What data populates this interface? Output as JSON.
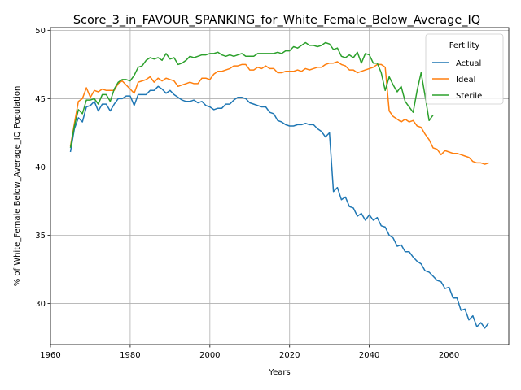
{
  "chart_data": {
    "type": "line",
    "title": "Score_3_in_FAVOUR_SPANKING_for_White_Female_Below_Average_IQ",
    "xlabel": "Years",
    "ylabel": "% of White_Female Below_Average_IQ Population",
    "xlim": [
      1960,
      2075
    ],
    "ylim": [
      27,
      50.2
    ],
    "xticks": [
      1960,
      1980,
      2000,
      2020,
      2040,
      2060
    ],
    "yticks": [
      30,
      35,
      40,
      45,
      50
    ],
    "grid": true,
    "legend": {
      "title": "Fertility",
      "placement": "top-right"
    },
    "series": [
      {
        "name": "Actual",
        "color": "#1f77b4",
        "x": [
          1965,
          1966,
          1967,
          1968,
          1969,
          1970,
          1971,
          1972,
          1973,
          1974,
          1975,
          1976,
          1977,
          1978,
          1979,
          1980,
          1981,
          1982,
          1983,
          1984,
          1985,
          1986,
          1987,
          1988,
          1989,
          1990,
          1991,
          1992,
          1993,
          1994,
          1995,
          1996,
          1997,
          1998,
          1999,
          2000,
          2001,
          2002,
          2003,
          2004,
          2005,
          2006,
          2007,
          2008,
          2009,
          2010,
          2011,
          2012,
          2013,
          2014,
          2015,
          2016,
          2017,
          2018,
          2019,
          2020,
          2021,
          2022,
          2023,
          2024,
          2025,
          2026,
          2027,
          2028,
          2029,
          2030,
          2031,
          2032,
          2033,
          2034,
          2035,
          2036,
          2037,
          2038,
          2039,
          2040,
          2041,
          2042,
          2043,
          2044,
          2045,
          2046,
          2047,
          2048,
          2049,
          2050,
          2051,
          2052,
          2053,
          2054,
          2055,
          2056,
          2057,
          2058,
          2059,
          2060,
          2061,
          2062,
          2063,
          2064,
          2065,
          2066,
          2067,
          2068,
          2069,
          2070
        ],
        "values": [
          41.1,
          42.8,
          43.6,
          43.3,
          44.4,
          44.5,
          44.8,
          44.1,
          44.6,
          44.6,
          44.1,
          44.6,
          45.0,
          45.0,
          45.2,
          45.2,
          44.5,
          45.3,
          45.3,
          45.3,
          45.6,
          45.6,
          45.9,
          45.7,
          45.4,
          45.6,
          45.3,
          45.1,
          44.9,
          44.8,
          44.8,
          44.9,
          44.7,
          44.8,
          44.5,
          44.4,
          44.2,
          44.3,
          44.3,
          44.6,
          44.6,
          44.9,
          45.1,
          45.1,
          45.0,
          44.7,
          44.6,
          44.5,
          44.4,
          44.4,
          44.0,
          43.9,
          43.4,
          43.3,
          43.1,
          43.0,
          43.0,
          43.1,
          43.1,
          43.2,
          43.1,
          43.1,
          42.8,
          42.6,
          42.2,
          42.5,
          38.2,
          38.5,
          37.6,
          37.8,
          37.1,
          37.0,
          36.4,
          36.6,
          36.1,
          36.5,
          36.1,
          36.3,
          35.7,
          35.6,
          35.0,
          34.8,
          34.2,
          34.3,
          33.8,
          33.8,
          33.4,
          33.1,
          32.9,
          32.4,
          32.3,
          32.0,
          31.7,
          31.6,
          31.1,
          31.2,
          30.4,
          30.4,
          29.5,
          29.6,
          28.8,
          29.1,
          28.3,
          28.6,
          28.2,
          28.6
        ]
      },
      {
        "name": "Ideal",
        "color": "#ff7f0e",
        "x": [
          1965,
          1966,
          1967,
          1968,
          1969,
          1970,
          1971,
          1972,
          1973,
          1974,
          1975,
          1976,
          1977,
          1978,
          1979,
          1980,
          1981,
          1982,
          1983,
          1984,
          1985,
          1986,
          1987,
          1988,
          1989,
          1990,
          1991,
          1992,
          1993,
          1994,
          1995,
          1996,
          1997,
          1998,
          1999,
          2000,
          2001,
          2002,
          2003,
          2004,
          2005,
          2006,
          2007,
          2008,
          2009,
          2010,
          2011,
          2012,
          2013,
          2014,
          2015,
          2016,
          2017,
          2018,
          2019,
          2020,
          2021,
          2022,
          2023,
          2024,
          2025,
          2026,
          2027,
          2028,
          2029,
          2030,
          2031,
          2032,
          2033,
          2034,
          2035,
          2036,
          2037,
          2038,
          2039,
          2040,
          2041,
          2042,
          2043,
          2044,
          2045,
          2046,
          2047,
          2048,
          2049,
          2050,
          2051,
          2052,
          2053,
          2054,
          2055,
          2056,
          2057,
          2058,
          2059,
          2060,
          2061,
          2062,
          2063,
          2064,
          2065,
          2066,
          2067,
          2068,
          2069,
          2070
        ],
        "values": [
          41.5,
          43.2,
          44.8,
          45.0,
          45.8,
          45.1,
          45.6,
          45.5,
          45.7,
          45.6,
          45.6,
          45.6,
          46.1,
          46.3,
          46.0,
          45.7,
          45.4,
          46.2,
          46.3,
          46.4,
          46.6,
          46.2,
          46.5,
          46.3,
          46.5,
          46.4,
          46.3,
          45.9,
          46.0,
          46.1,
          46.2,
          46.1,
          46.1,
          46.5,
          46.5,
          46.4,
          46.8,
          47.0,
          47.0,
          47.1,
          47.2,
          47.4,
          47.4,
          47.5,
          47.5,
          47.1,
          47.1,
          47.3,
          47.2,
          47.4,
          47.2,
          47.2,
          46.9,
          46.9,
          47.0,
          47.0,
          47.0,
          47.1,
          47.0,
          47.2,
          47.1,
          47.2,
          47.3,
          47.3,
          47.5,
          47.6,
          47.6,
          47.7,
          47.5,
          47.4,
          47.1,
          47.1,
          46.9,
          47.0,
          47.1,
          47.2,
          47.3,
          47.5,
          47.5,
          47.3,
          44.1,
          43.7,
          43.5,
          43.3,
          43.5,
          43.3,
          43.4,
          43.0,
          42.9,
          42.4,
          42.0,
          41.4,
          41.3,
          40.9,
          41.2,
          41.1,
          41.0,
          41.0,
          40.9,
          40.8,
          40.7,
          40.4,
          40.3,
          40.3,
          40.2,
          40.3
        ]
      },
      {
        "name": "Sterile",
        "color": "#2ca02c",
        "x": [
          1965,
          1966,
          1967,
          1968,
          1969,
          1970,
          1971,
          1972,
          1973,
          1974,
          1975,
          1976,
          1977,
          1978,
          1979,
          1980,
          1981,
          1982,
          1983,
          1984,
          1985,
          1986,
          1987,
          1988,
          1989,
          1990,
          1991,
          1992,
          1993,
          1994,
          1995,
          1996,
          1997,
          1998,
          1999,
          2000,
          2001,
          2002,
          2003,
          2004,
          2005,
          2006,
          2007,
          2008,
          2009,
          2010,
          2011,
          2012,
          2013,
          2014,
          2015,
          2016,
          2017,
          2018,
          2019,
          2020,
          2021,
          2022,
          2023,
          2024,
          2025,
          2026,
          2027,
          2028,
          2029,
          2030,
          2031,
          2032,
          2033,
          2034,
          2035,
          2036,
          2037,
          2038,
          2039,
          2040,
          2041,
          2042,
          2043,
          2044,
          2045,
          2046,
          2047,
          2048,
          2049,
          2050,
          2051,
          2052,
          2053,
          2054,
          2055,
          2056
        ],
        "values": [
          41.4,
          43.0,
          44.2,
          43.9,
          44.9,
          44.9,
          45.0,
          44.6,
          45.3,
          45.3,
          44.8,
          45.7,
          46.2,
          46.4,
          46.4,
          46.3,
          46.7,
          47.3,
          47.4,
          47.8,
          48.0,
          47.9,
          48.0,
          47.8,
          48.3,
          47.9,
          48.0,
          47.5,
          47.6,
          47.8,
          48.1,
          48.0,
          48.1,
          48.2,
          48.2,
          48.3,
          48.3,
          48.4,
          48.2,
          48.1,
          48.2,
          48.1,
          48.2,
          48.3,
          48.1,
          48.1,
          48.1,
          48.3,
          48.3,
          48.3,
          48.3,
          48.3,
          48.4,
          48.3,
          48.5,
          48.5,
          48.8,
          48.7,
          48.9,
          49.1,
          48.9,
          48.9,
          48.8,
          48.9,
          49.1,
          49.0,
          48.6,
          48.7,
          48.1,
          48.0,
          48.2,
          48.0,
          48.4,
          47.6,
          48.3,
          48.2,
          47.6,
          47.6,
          46.9,
          45.6,
          46.6,
          46.0,
          45.5,
          45.9,
          44.8,
          44.4,
          44.0,
          45.6,
          46.9,
          45.2,
          43.4,
          43.8
        ]
      }
    ]
  }
}
